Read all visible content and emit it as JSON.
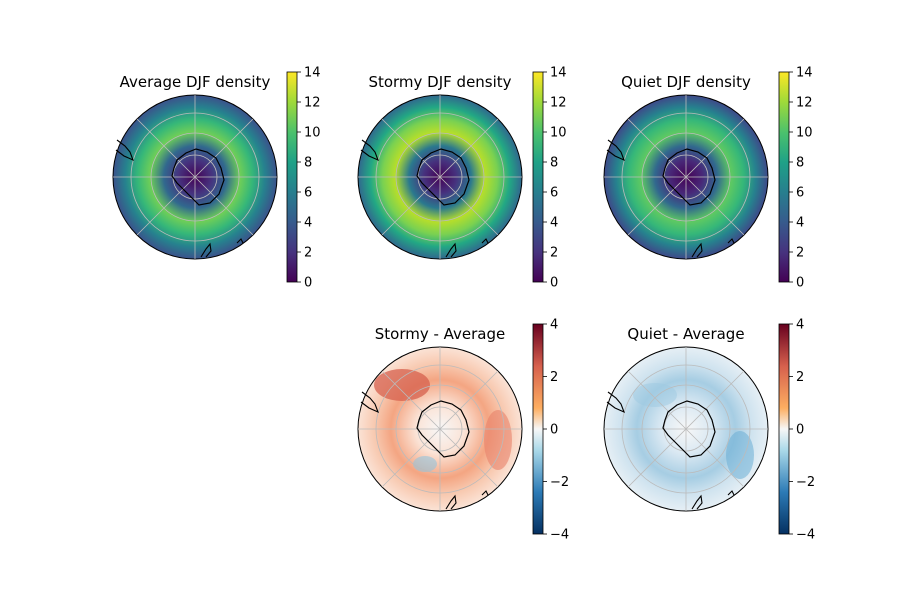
{
  "figure": {
    "background": "#ffffff"
  },
  "chart_data": [
    {
      "type": "heatmap",
      "projection": "south-polar-stereographic",
      "title": "Average DJF density",
      "colormap": "viridis",
      "colorbar": {
        "range": [
          0,
          14
        ],
        "ticks": [
          0,
          2,
          4,
          6,
          8,
          10,
          12,
          14
        ],
        "tick_labels": [
          "0",
          "2",
          "4",
          "6",
          "8",
          "10",
          "12",
          "14"
        ]
      },
      "description_values": {
        "center_min": 0,
        "ring_max": 11
      }
    },
    {
      "type": "heatmap",
      "projection": "south-polar-stereographic",
      "title": "Stormy DJF density",
      "colormap": "viridis",
      "colorbar": {
        "range": [
          0,
          14
        ],
        "ticks": [
          0,
          2,
          4,
          6,
          8,
          10,
          12,
          14
        ],
        "tick_labels": [
          "0",
          "2",
          "4",
          "6",
          "8",
          "10",
          "12",
          "14"
        ]
      },
      "description_values": {
        "center_min": 0,
        "ring_max": 13
      }
    },
    {
      "type": "heatmap",
      "projection": "south-polar-stereographic",
      "title": "Quiet DJF density",
      "colormap": "viridis",
      "colorbar": {
        "range": [
          0,
          14
        ],
        "ticks": [
          0,
          2,
          4,
          6,
          8,
          10,
          12,
          14
        ],
        "tick_labels": [
          "0",
          "2",
          "4",
          "6",
          "8",
          "10",
          "12",
          "14"
        ]
      },
      "description_values": {
        "center_min": 0,
        "ring_max": 10
      }
    },
    {
      "type": "heatmap",
      "projection": "south-polar-stereographic",
      "title": "Stormy - Average",
      "colormap": "RdBu_r",
      "colorbar": {
        "range": [
          -4,
          4
        ],
        "ticks": [
          4,
          2,
          0,
          -2,
          -4
        ],
        "tick_labels": [
          "4",
          "2",
          "0",
          "−2",
          "−4"
        ]
      }
    },
    {
      "type": "heatmap",
      "projection": "south-polar-stereographic",
      "title": "Quiet - Average",
      "colormap": "RdBu_r",
      "colorbar": {
        "range": [
          -4,
          4
        ],
        "ticks": [
          4,
          2,
          0,
          -2,
          -4
        ],
        "tick_labels": [
          "4",
          "2",
          "0",
          "−2",
          "−4"
        ]
      }
    }
  ]
}
